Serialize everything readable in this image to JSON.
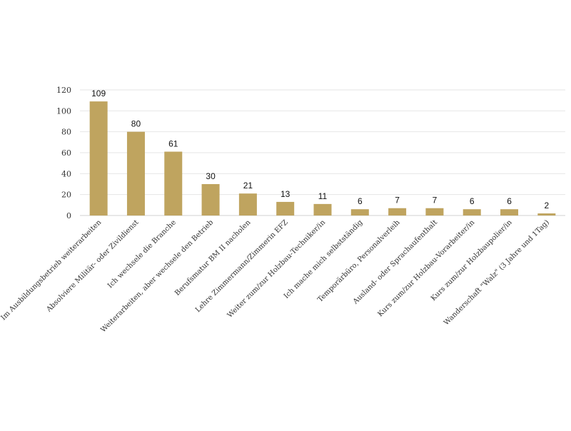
{
  "chart_data": {
    "type": "bar",
    "title": "",
    "xlabel": "",
    "ylabel": "",
    "ylim": [
      0,
      120
    ],
    "yticks": [
      0,
      20,
      40,
      60,
      80,
      100,
      120
    ],
    "grid": true,
    "legend": "none",
    "bar_color": "#bfa45f",
    "categories": [
      "Im Ausbildungsbetrieb weiterarbeiten",
      "Absolviere Militär- oder Zivildienst",
      "Ich wechsele die Branche",
      "Weiterarbeiten, aber wechsele den Betrieb",
      "Berufsmatur BM II nacholen",
      "Lehre Zimmermann/Zimmerin EFZ",
      "Weiter zum/zur Holzbau-Techniker/in",
      "Ich mache mich selbstständig",
      "Temporärbüro, Personalverleih",
      "Ausland- oder Sprachaufenthalt",
      "Kurs zum/zur Holzbau-Vorarbeiter/in",
      "Kurs zum/zur Holzbaupolier/in",
      "Wanderschaft \"Walz\" (3 Jahre und 1Tag)"
    ],
    "values": [
      109,
      80,
      61,
      30,
      21,
      13,
      11,
      6,
      7,
      7,
      6,
      6,
      2
    ],
    "data_labels": [
      "109",
      "80",
      "61",
      "30",
      "21",
      "13",
      "11",
      "6",
      "7",
      "7",
      "6",
      "6",
      "2"
    ]
  }
}
